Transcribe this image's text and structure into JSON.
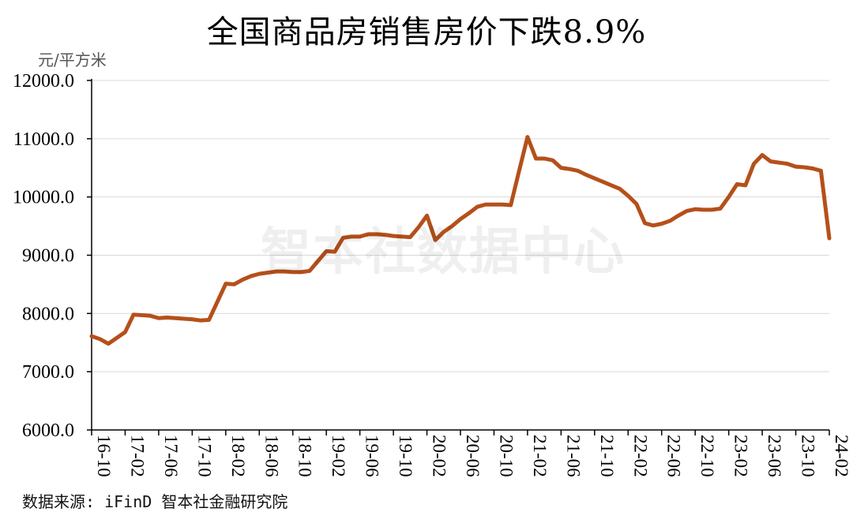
{
  "title": "全国商品房销售房价下跌8.9%",
  "source": "数据来源: iFinD 智本社金融研究院",
  "watermark": "智本社数据中心",
  "colors": {
    "line": "#B5501A",
    "axis": "#000000",
    "grid": "#d9d9d9"
  },
  "chart_data": {
    "type": "line",
    "title": "全国商品房销售房价下跌8.9%",
    "ylabel": "元/平方米",
    "xlabel": "",
    "ylim": [
      6000,
      12000
    ],
    "yticks": [
      "6000.0",
      "7000.0",
      "8000.0",
      "9000.0",
      "10000.0",
      "11000.0",
      "12000.0"
    ],
    "grid": "horizontal",
    "x": [
      "16-10",
      "16-11",
      "16-12",
      "17-01",
      "17-02",
      "17-03",
      "17-04",
      "17-05",
      "17-06",
      "17-07",
      "17-08",
      "17-09",
      "17-10",
      "17-11",
      "17-12",
      "18-01",
      "18-02",
      "18-03",
      "18-04",
      "18-05",
      "18-06",
      "18-07",
      "18-08",
      "18-09",
      "18-10",
      "18-11",
      "18-12",
      "19-01",
      "19-02",
      "19-03",
      "19-04",
      "19-05",
      "19-06",
      "19-07",
      "19-08",
      "19-09",
      "19-10",
      "19-11",
      "19-12",
      "20-01",
      "20-02",
      "20-03",
      "20-04",
      "20-05",
      "20-06",
      "20-07",
      "20-08",
      "20-09",
      "20-10",
      "20-11",
      "20-12",
      "21-01",
      "21-02",
      "21-03",
      "21-04",
      "21-05",
      "21-06",
      "21-07",
      "21-08",
      "21-09",
      "21-10",
      "21-11",
      "21-12",
      "22-01",
      "22-02",
      "22-03",
      "22-04",
      "22-05",
      "22-06",
      "22-07",
      "22-08",
      "22-09",
      "22-10",
      "22-11",
      "22-12",
      "23-01",
      "23-02",
      "23-03",
      "23-04",
      "23-05",
      "23-06",
      "23-07",
      "23-08",
      "23-09",
      "23-10",
      "23-11",
      "23-12",
      "24-01",
      "24-02"
    ],
    "xtick_labels": [
      "16-10",
      "17-02",
      "17-06",
      "17-10",
      "18-02",
      "18-06",
      "18-10",
      "19-02",
      "19-06",
      "19-10",
      "20-02",
      "20-06",
      "20-10",
      "21-02",
      "21-06",
      "21-10",
      "22-02",
      "22-06",
      "22-10",
      "23-02",
      "23-06",
      "23-10",
      "24-02"
    ],
    "series": [
      {
        "values": [
          7610,
          7560,
          7480,
          7580,
          7680,
          7980,
          7970,
          7960,
          7920,
          7930,
          7920,
          7910,
          7900,
          7880,
          7890,
          8200,
          8510,
          8500,
          8580,
          8640,
          8680,
          8700,
          8720,
          8720,
          8710,
          8710,
          8730,
          8900,
          9070,
          9060,
          9300,
          9320,
          9320,
          9360,
          9360,
          9350,
          9330,
          9320,
          9310,
          9480,
          9680,
          9260,
          9400,
          9500,
          9620,
          9720,
          9830,
          9870,
          9870,
          9870,
          9860,
          10450,
          11030,
          10660,
          10660,
          10630,
          10500,
          10480,
          10450,
          10380,
          10320,
          10260,
          10200,
          10140,
          10020,
          9880,
          9550,
          9510,
          9540,
          9590,
          9680,
          9760,
          9790,
          9780,
          9780,
          9800,
          10000,
          10220,
          10200,
          10570,
          10720,
          10610,
          10590,
          10570,
          10520,
          10510,
          10490,
          10450,
          9290
        ]
      }
    ]
  }
}
